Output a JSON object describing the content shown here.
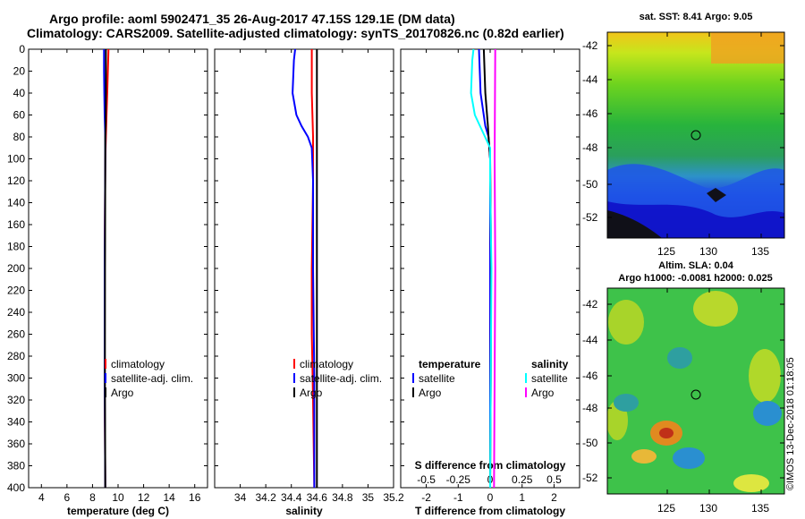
{
  "header": {
    "line1": "Argo profile: aoml 5902471_35 26-Aug-2017 47.15S 129.1E (DM data)",
    "line2": "Climatology: CARS2009. Satellite-adjusted climatology: synTS_20170826.nc (0.82d earlier)"
  },
  "maps": {
    "sst_title": "sat. SST: 8.41  Argo: 9.05",
    "sla_title1": "Altim. SLA: 0.04",
    "sla_title2": "Argo h1000: -0.0081 h2000: 0.025",
    "lat_ticks": [
      "-42",
      "-44",
      "-46",
      "-48",
      "-50",
      "-52"
    ],
    "lon_ticks": [
      "125",
      "130",
      "135"
    ]
  },
  "credit": "©IMOS 13-Dec-2018 01:18:05",
  "colors": {
    "climatology": "#ff0000",
    "satellite": "#0000ff",
    "argo": "#000000",
    "salinity_satellite": "#00ffff",
    "salinity_argo": "#ff00ff"
  },
  "chart_data": [
    {
      "type": "line",
      "xlabel": "temperature (deg C)",
      "ylabel": "",
      "xlim": [
        3,
        17
      ],
      "ylim": [
        400,
        0
      ],
      "x_ticks": [
        "4",
        "6",
        "8",
        "10",
        "12",
        "14",
        "16"
      ],
      "y_ticks": [
        "0",
        "20",
        "40",
        "60",
        "80",
        "100",
        "120",
        "140",
        "160",
        "180",
        "200",
        "220",
        "240",
        "260",
        "280",
        "300",
        "320",
        "340",
        "360",
        "380",
        "400"
      ],
      "legend": [
        "climatology",
        "satellite-adj. clim.",
        "Argo"
      ],
      "series": [
        {
          "name": "climatology",
          "color": "#ff0000",
          "depth": [
            0,
            20,
            40,
            60,
            80,
            100,
            200,
            300,
            400
          ],
          "values": [
            9.25,
            9.2,
            9.15,
            9.1,
            9.05,
            9.0,
            8.95,
            8.95,
            9.0
          ]
        },
        {
          "name": "satellite-adj. clim.",
          "color": "#0000ff",
          "depth": [
            0,
            20,
            40,
            60,
            80,
            100,
            200,
            300,
            400
          ],
          "values": [
            8.9,
            8.9,
            8.92,
            8.95,
            9.0,
            9.0,
            8.95,
            8.95,
            9.0
          ]
        },
        {
          "name": "Argo",
          "color": "#000000",
          "depth": [
            0,
            40,
            70,
            80,
            100,
            200,
            300,
            400
          ],
          "values": [
            9.05,
            9.05,
            9.03,
            9.0,
            9.0,
            8.98,
            8.97,
            9.0
          ]
        }
      ]
    },
    {
      "type": "line",
      "xlabel": "salinity",
      "xlim": [
        33.8,
        35.2
      ],
      "ylim": [
        400,
        0
      ],
      "x_ticks": [
        "34",
        "34.2",
        "34.4",
        "34.6",
        "34.8",
        "35",
        "35.2"
      ],
      "legend": [
        "climatology",
        "satellite-adj. clim.",
        "Argo"
      ],
      "series": [
        {
          "name": "climatology",
          "color": "#ff0000",
          "depth": [
            0,
            40,
            80,
            120,
            200,
            260,
            320,
            400
          ],
          "values": [
            34.56,
            34.56,
            34.57,
            34.57,
            34.56,
            34.56,
            34.57,
            34.58
          ]
        },
        {
          "name": "satellite-adj. clim.",
          "color": "#0000ff",
          "depth": [
            0,
            10,
            40,
            60,
            70,
            80,
            90,
            120,
            200,
            300,
            400
          ],
          "values": [
            34.43,
            34.42,
            34.41,
            34.44,
            34.48,
            34.53,
            34.56,
            34.57,
            34.57,
            34.58,
            34.58
          ]
        },
        {
          "name": "Argo",
          "color": "#000000",
          "depth": [
            0,
            100,
            200,
            300,
            400
          ],
          "values": [
            34.6,
            34.6,
            34.6,
            34.6,
            34.6
          ]
        }
      ]
    },
    {
      "type": "line",
      "xlabel": "T difference from climatology",
      "top_xlabel": "S difference from climatology",
      "xlim": [
        -2.8,
        2.8
      ],
      "top_xlim": [
        -0.7,
        0.7
      ],
      "ylim": [
        400,
        0
      ],
      "x_ticks": [
        "-2",
        "-1",
        "0",
        "1",
        "2"
      ],
      "top_x_ticks": [
        "-0.5",
        "-0.25",
        "0",
        "0.25",
        "0.5"
      ],
      "legend_temperature": {
        "title": "temperature",
        "items": [
          "satellite",
          "Argo"
        ]
      },
      "legend_salinity": {
        "title": "salinity",
        "items": [
          "satellite",
          "Argo"
        ]
      },
      "series": [
        {
          "name": "T satellite",
          "color": "#0000ff",
          "depth": [
            0,
            40,
            70,
            80,
            100,
            200,
            300,
            400
          ],
          "values": [
            -0.35,
            -0.3,
            -0.15,
            -0.05,
            0.0,
            0.0,
            0.0,
            0.0
          ]
        },
        {
          "name": "T Argo",
          "color": "#000000",
          "depth": [
            0,
            40,
            70,
            80,
            100,
            200,
            300,
            400
          ],
          "values": [
            -0.2,
            -0.15,
            -0.07,
            -0.05,
            0.0,
            0.03,
            0.02,
            0.0
          ]
        },
        {
          "name": "S satellite",
          "color": "#00ffff",
          "depth": [
            0,
            10,
            40,
            60,
            80,
            90,
            120,
            200,
            400
          ],
          "values": [
            -0.13,
            -0.14,
            -0.15,
            -0.12,
            -0.04,
            0.0,
            0.0,
            0.01,
            0.0
          ]
        },
        {
          "name": "S Argo",
          "color": "#ff00ff",
          "depth": [
            0,
            100,
            200,
            300,
            400
          ],
          "values": [
            0.04,
            0.035,
            0.04,
            0.035,
            0.03
          ]
        }
      ]
    }
  ]
}
